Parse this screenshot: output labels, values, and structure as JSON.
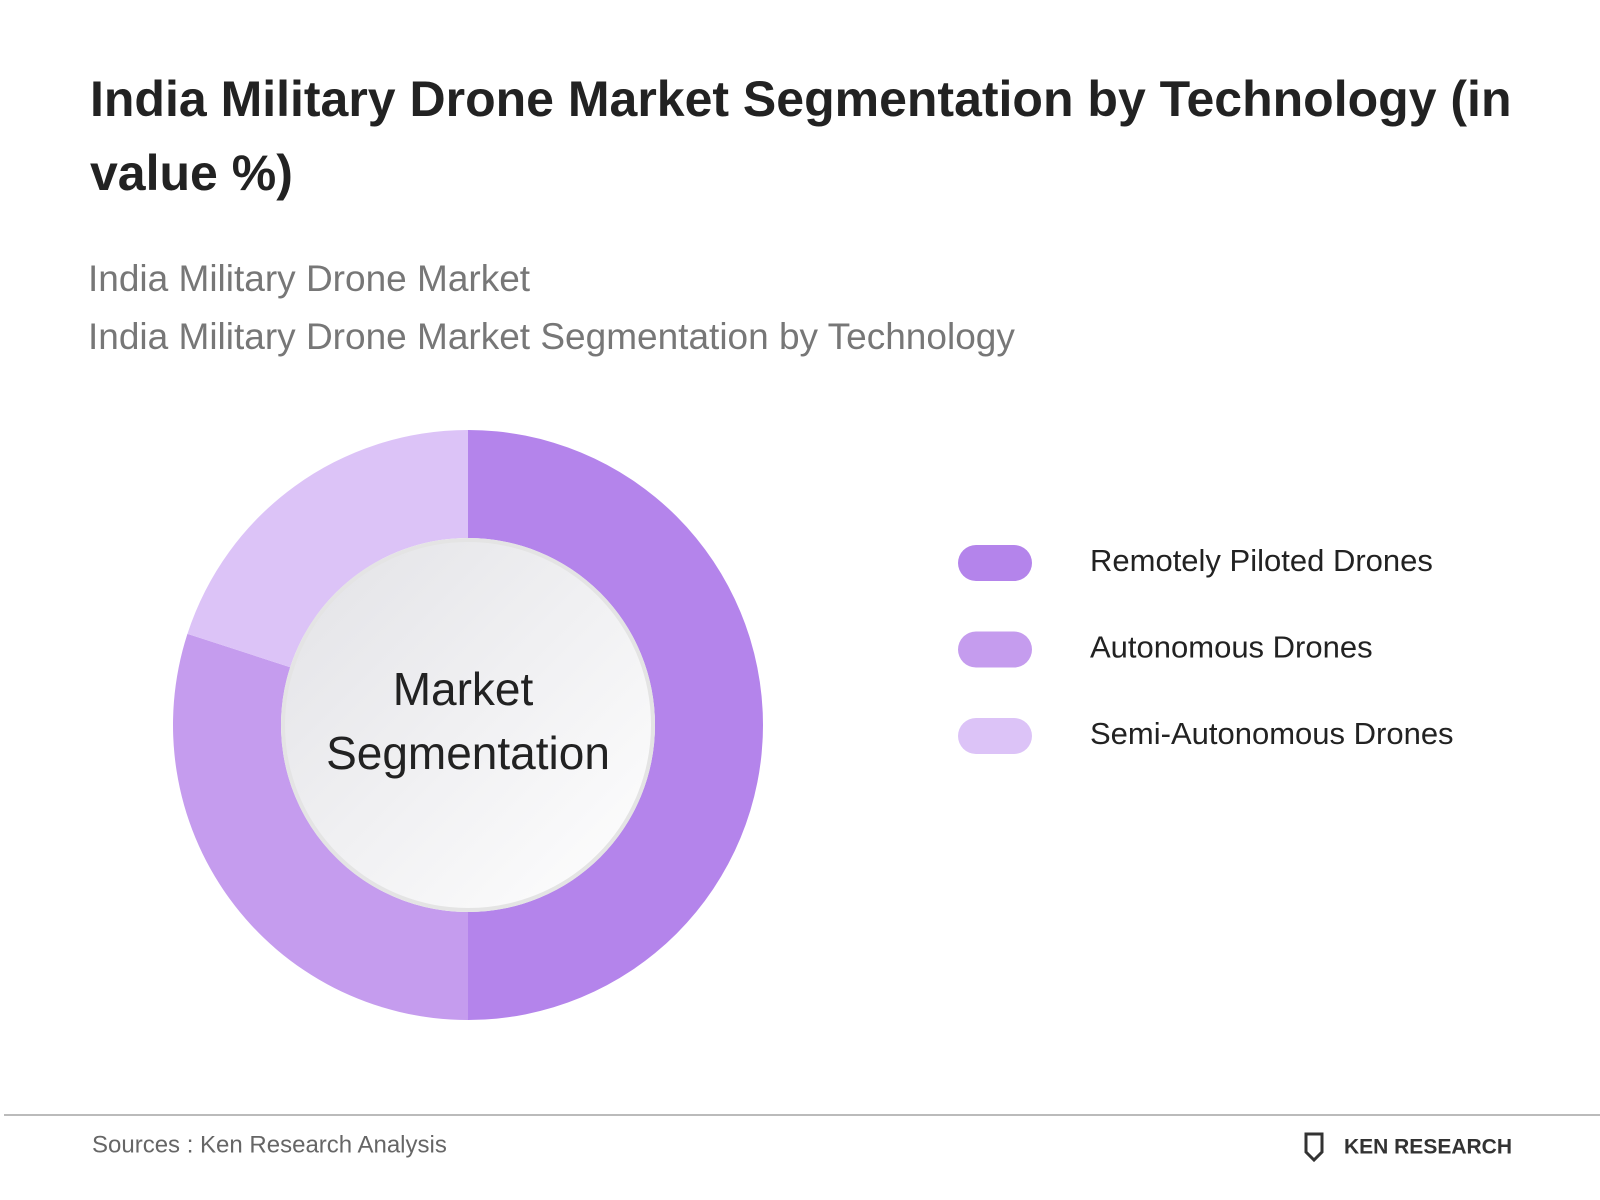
{
  "chart_data": {
    "type": "donut",
    "title": "India Military Drone Market Segmentation by Technology (in value %)",
    "subtitles": [
      "India Military Drone Market",
      "India Military Drone Market Segmentation by Technology"
    ],
    "center_label": [
      "Market",
      "Segmentation"
    ],
    "categories": [
      "Remotely Piloted Drones",
      "Autonomous Drones",
      "Semi-Autonomous Drones"
    ],
    "values": [
      50,
      30,
      20
    ],
    "colors": [
      "#b484eb",
      "#c59cee",
      "#dcc3f7"
    ],
    "source": "Sources : Ken Research Analysis",
    "logo": "KEN RESEARCH"
  }
}
